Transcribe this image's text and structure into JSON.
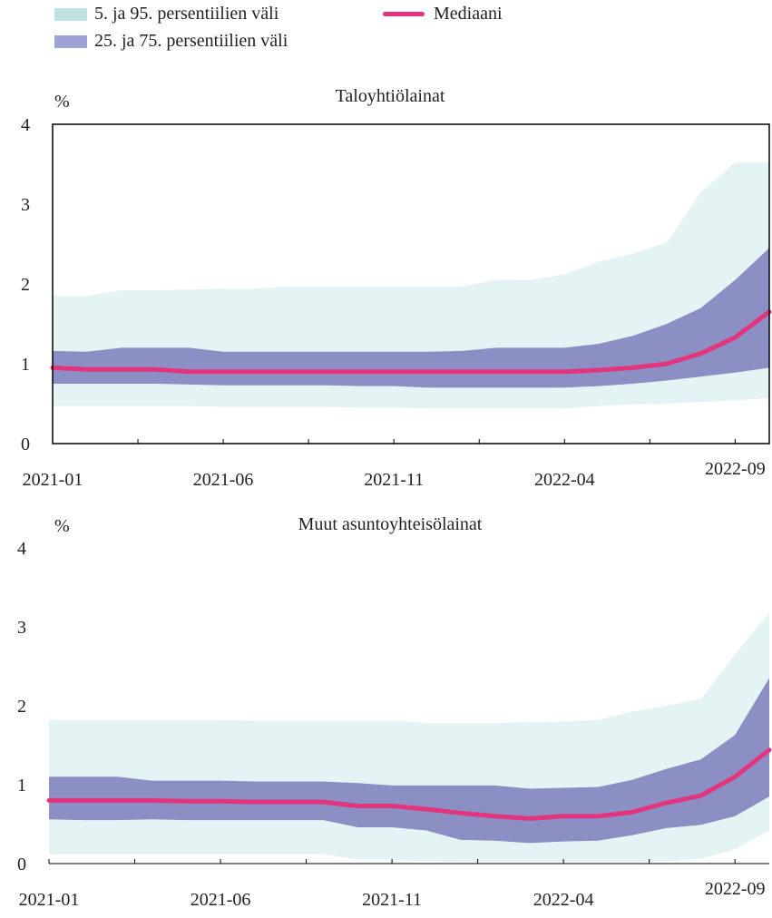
{
  "legend": {
    "band_outer_label": "5. ja 95. persentiilien väli",
    "band_inner_label": "25. ja 75. persentiilien väli",
    "median_label": "Mediaani"
  },
  "colors": {
    "band_outer": "#e4f3f3",
    "band_inner": "#8c8fc4",
    "median": "#e2357e",
    "legend_outer": "#bfe3e3",
    "legend_inner": "#9fa2d4"
  },
  "chart_data": [
    {
      "type": "area",
      "title": "Taloyhtiölainat",
      "unit_label": "%",
      "ylim": [
        0,
        4
      ],
      "yticks": [
        "0",
        "1",
        "2",
        "3",
        "4"
      ],
      "xtick_labels": [
        "2021-01",
        "2021-06",
        "2021-11",
        "2022-04",
        "2022-09"
      ],
      "x": [
        "2021-01",
        "2021-02",
        "2021-03",
        "2021-04",
        "2021-05",
        "2021-06",
        "2021-07",
        "2021-08",
        "2021-09",
        "2021-10",
        "2021-11",
        "2021-12",
        "2022-01",
        "2022-02",
        "2022-03",
        "2022-04",
        "2022-05",
        "2022-06",
        "2022-07",
        "2022-08",
        "2022-09",
        "2022-10"
      ],
      "series": [
        {
          "name": "5. ja 95. persentiilien väli",
          "kind": "band",
          "lower": [
            0.47,
            0.47,
            0.47,
            0.47,
            0.47,
            0.46,
            0.46,
            0.46,
            0.46,
            0.45,
            0.45,
            0.44,
            0.44,
            0.44,
            0.44,
            0.44,
            0.47,
            0.49,
            0.5,
            0.52,
            0.54,
            0.57
          ],
          "upper": [
            1.85,
            1.85,
            1.92,
            1.92,
            1.93,
            1.94,
            1.94,
            1.97,
            1.97,
            1.97,
            1.97,
            1.97,
            1.97,
            2.05,
            2.05,
            2.12,
            2.28,
            2.38,
            2.52,
            3.15,
            3.52,
            3.52
          ]
        },
        {
          "name": "25. ja 75. persentiilien väli",
          "kind": "band",
          "lower": [
            0.75,
            0.75,
            0.75,
            0.75,
            0.74,
            0.73,
            0.73,
            0.73,
            0.73,
            0.72,
            0.72,
            0.7,
            0.7,
            0.7,
            0.7,
            0.7,
            0.72,
            0.75,
            0.79,
            0.84,
            0.89,
            0.95
          ],
          "upper": [
            1.16,
            1.15,
            1.2,
            1.2,
            1.2,
            1.15,
            1.15,
            1.15,
            1.15,
            1.15,
            1.15,
            1.15,
            1.16,
            1.2,
            1.2,
            1.2,
            1.25,
            1.35,
            1.5,
            1.7,
            2.05,
            2.45
          ]
        },
        {
          "name": "Mediaani",
          "kind": "line",
          "values": [
            0.95,
            0.93,
            0.93,
            0.93,
            0.9,
            0.9,
            0.9,
            0.9,
            0.9,
            0.9,
            0.9,
            0.9,
            0.9,
            0.9,
            0.9,
            0.9,
            0.92,
            0.95,
            1.0,
            1.13,
            1.33,
            1.65
          ]
        }
      ]
    },
    {
      "type": "area",
      "title": "Muut asuntoyhteisölainat",
      "unit_label": "%",
      "ylim": [
        0,
        4
      ],
      "yticks": [
        "0",
        "1",
        "2",
        "3",
        "4"
      ],
      "xtick_labels": [
        "2021-01",
        "2021-06",
        "2021-11",
        "2022-04",
        "2022-09"
      ],
      "x": [
        "2021-01",
        "2021-02",
        "2021-03",
        "2021-04",
        "2021-05",
        "2021-06",
        "2021-07",
        "2021-08",
        "2021-09",
        "2021-10",
        "2021-11",
        "2021-12",
        "2022-01",
        "2022-02",
        "2022-03",
        "2022-04",
        "2022-05",
        "2022-06",
        "2022-07",
        "2022-08",
        "2022-09",
        "2022-10"
      ],
      "series": [
        {
          "name": "5. ja 95. persentiilien väli",
          "kind": "band",
          "lower": [
            0.12,
            0.12,
            0.12,
            0.12,
            0.12,
            0.12,
            0.12,
            0.12,
            0.12,
            0.05,
            0.05,
            0.03,
            0.02,
            0.02,
            0.02,
            0.02,
            0.02,
            0.02,
            0.03,
            0.06,
            0.18,
            0.42
          ],
          "upper": [
            1.82,
            1.82,
            1.82,
            1.82,
            1.82,
            1.82,
            1.81,
            1.81,
            1.81,
            1.81,
            1.81,
            1.78,
            1.78,
            1.78,
            1.79,
            1.8,
            1.82,
            1.93,
            2.0,
            2.08,
            2.65,
            3.18
          ]
        },
        {
          "name": "25. ja 75. persentiilien väli",
          "kind": "band",
          "lower": [
            0.56,
            0.55,
            0.55,
            0.56,
            0.55,
            0.55,
            0.55,
            0.55,
            0.55,
            0.46,
            0.46,
            0.42,
            0.3,
            0.29,
            0.26,
            0.28,
            0.29,
            0.36,
            0.45,
            0.49,
            0.6,
            0.85
          ],
          "upper": [
            1.1,
            1.1,
            1.1,
            1.05,
            1.05,
            1.05,
            1.04,
            1.04,
            1.04,
            1.02,
            0.99,
            0.99,
            0.99,
            0.99,
            0.95,
            0.96,
            0.97,
            1.06,
            1.2,
            1.32,
            1.63,
            2.35
          ]
        },
        {
          "name": "Mediaani",
          "kind": "line",
          "values": [
            0.8,
            0.8,
            0.8,
            0.8,
            0.79,
            0.79,
            0.78,
            0.78,
            0.78,
            0.73,
            0.73,
            0.69,
            0.64,
            0.6,
            0.57,
            0.6,
            0.6,
            0.65,
            0.77,
            0.86,
            1.1,
            1.44
          ]
        }
      ]
    }
  ]
}
